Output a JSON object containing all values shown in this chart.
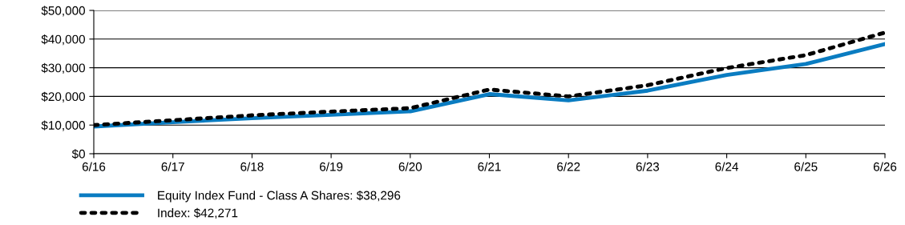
{
  "chart_data": {
    "type": "line",
    "categories": [
      "6/16",
      "6/17",
      "6/18",
      "6/19",
      "6/20",
      "6/21",
      "6/22",
      "6/23",
      "6/24",
      "6/25",
      "6/26"
    ],
    "series": [
      {
        "name": "Equity Index Fund - Class A Shares: $38,296",
        "color": "#0a7cc1",
        "line_style": "solid",
        "values": [
          9500,
          11000,
          12400,
          13600,
          14800,
          20800,
          18600,
          22000,
          27500,
          31300,
          38296
        ]
      },
      {
        "name": "Index: $42,271",
        "color": "#000000",
        "line_style": "dotted",
        "values": [
          10000,
          11700,
          13400,
          14700,
          15900,
          22400,
          20000,
          23900,
          29900,
          34400,
          42271
        ]
      }
    ],
    "ylim": [
      0,
      50000
    ],
    "yticks": [
      {
        "value": 0,
        "label": "$0"
      },
      {
        "value": 10000,
        "label": "$10,000"
      },
      {
        "value": 20000,
        "label": "$20,000"
      },
      {
        "value": 30000,
        "label": "$30,000"
      },
      {
        "value": 40000,
        "label": "$40,000"
      },
      {
        "value": 50000,
        "label": "$50,000"
      }
    ],
    "grid": "y",
    "legend": "bottom",
    "marker": "none"
  }
}
